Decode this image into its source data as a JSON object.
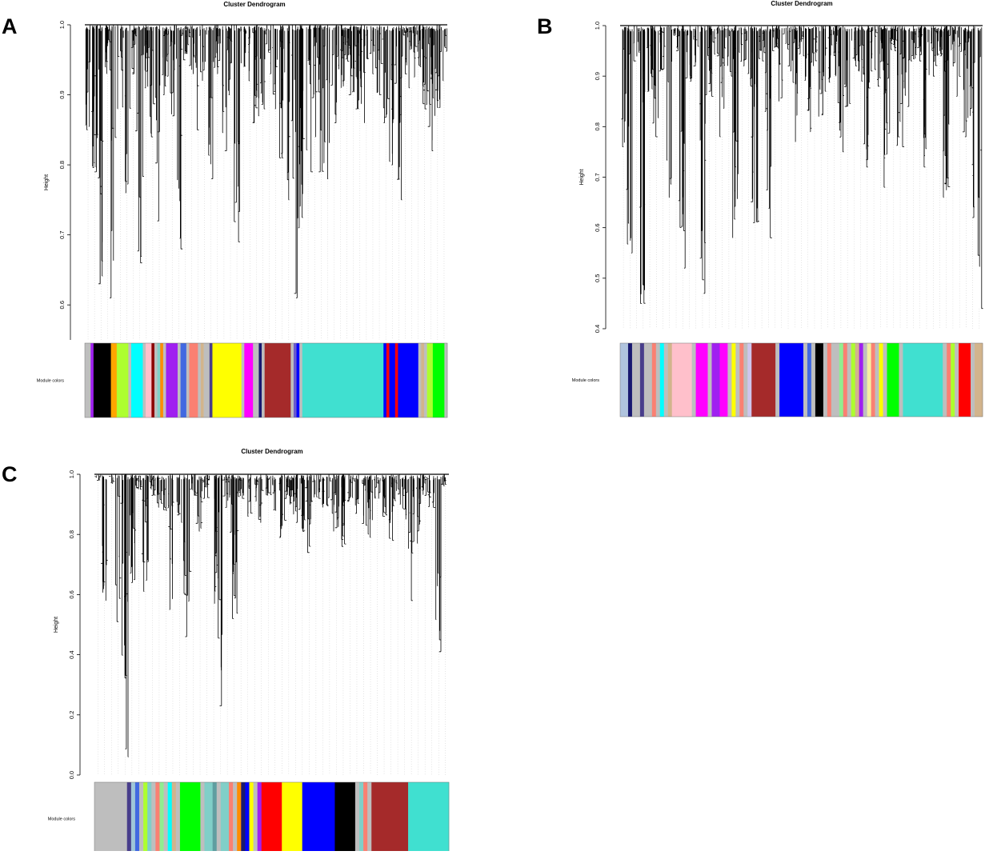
{
  "panel_labels": [
    "A",
    "B",
    "C"
  ],
  "chart_data": [
    {
      "panel": "A",
      "type": "dendrogram",
      "title": "Cluster Dendrogram",
      "ylabel": "Height",
      "band_label": "Module colors",
      "ylim": [
        0.55,
        1.0
      ],
      "yticks": [
        "0.6",
        "0.7",
        "0.8",
        "0.9",
        "1.0"
      ],
      "merge_heights": [
        0.85,
        0.79,
        0.63,
        0.93,
        0.61,
        0.88,
        0.76,
        0.93,
        0.66,
        0.91,
        0.84,
        0.72,
        0.9,
        0.87,
        0.68,
        0.95,
        0.93,
        0.85,
        0.92,
        0.78,
        0.93,
        0.82,
        0.9,
        0.69,
        0.94,
        0.92,
        0.86,
        0.88,
        0.93,
        0.88,
        0.81,
        0.75,
        0.61,
        0.71,
        0.79,
        0.84,
        0.79,
        0.78,
        0.86,
        0.91,
        0.92,
        0.9,
        0.88,
        0.86,
        0.93,
        0.9,
        0.86,
        0.8,
        0.75,
        0.93,
        0.91,
        0.94,
        0.88,
        0.82,
        0.87,
        0.92
      ],
      "module_colors": [
        {
          "color": "grey",
          "width": 2
        },
        {
          "color": "purple",
          "width": 1
        },
        {
          "color": "black",
          "width": 6
        },
        {
          "color": "orange",
          "width": 2
        },
        {
          "color": "greenyellow",
          "width": 4
        },
        {
          "color": "grey",
          "width": 1
        },
        {
          "color": "cyan",
          "width": 4
        },
        {
          "color": "grey",
          "width": 1
        },
        {
          "color": "pink",
          "width": 2
        },
        {
          "color": "darkred",
          "width": 1
        },
        {
          "color": "grey",
          "width": 1
        },
        {
          "color": "lightcyan",
          "width": 1
        },
        {
          "color": "darkorange",
          "width": 1
        },
        {
          "color": "grey",
          "width": 1
        },
        {
          "color": "purple",
          "width": 4
        },
        {
          "color": "grey",
          "width": 1
        },
        {
          "color": "royalblue",
          "width": 2
        },
        {
          "color": "grey",
          "width": 1
        },
        {
          "color": "salmon",
          "width": 3
        },
        {
          "color": "grey",
          "width": 1
        },
        {
          "color": "tan",
          "width": 1
        },
        {
          "color": "grey",
          "width": 2
        },
        {
          "color": "darkslateblue",
          "width": 1
        },
        {
          "color": "yellow",
          "width": 10
        },
        {
          "color": "grey",
          "width": 1
        },
        {
          "color": "magenta",
          "width": 3
        },
        {
          "color": "grey",
          "width": 2
        },
        {
          "color": "midnightblue",
          "width": 1
        },
        {
          "color": "grey",
          "width": 1
        },
        {
          "color": "brown",
          "width": 9
        },
        {
          "color": "grey",
          "width": 1
        },
        {
          "color": "slateblue",
          "width": 1
        },
        {
          "color": "blue",
          "width": 1
        },
        {
          "color": "grey",
          "width": 1
        },
        {
          "color": "turquoise",
          "width": 28
        },
        {
          "color": "blue",
          "width": 1
        },
        {
          "color": "red",
          "width": 1
        },
        {
          "color": "blue",
          "width": 2
        },
        {
          "color": "red",
          "width": 1
        },
        {
          "color": "blue",
          "width": 7
        },
        {
          "color": "grey",
          "width": 1
        },
        {
          "color": "tan",
          "width": 1
        },
        {
          "color": "grey",
          "width": 1
        },
        {
          "color": "greenyellow",
          "width": 2
        },
        {
          "color": "green",
          "width": 4
        },
        {
          "color": "grey",
          "width": 1
        }
      ]
    },
    {
      "panel": "B",
      "type": "dendrogram",
      "title": "Cluster Dendrogram",
      "ylabel": "Height",
      "band_label": "Module colors",
      "ylim": [
        0.4,
        1.0
      ],
      "yticks": [
        "0.4",
        "0.5",
        "0.6",
        "0.7",
        "0.8",
        "0.9",
        "1.0"
      ],
      "merge_heights": [
        0.76,
        0.55,
        0.93,
        0.45,
        0.87,
        0.78,
        0.91,
        0.66,
        0.95,
        0.52,
        0.89,
        0.92,
        0.47,
        0.86,
        0.94,
        0.78,
        0.9,
        0.58,
        0.92,
        0.88,
        0.61,
        0.93,
        0.58,
        0.95,
        0.85,
        0.91,
        0.77,
        0.94,
        0.79,
        0.92,
        0.82,
        0.87,
        0.9,
        0.75,
        0.84,
        0.92,
        0.89,
        0.72,
        0.91,
        0.88,
        0.68,
        0.95,
        0.76,
        0.84,
        0.93,
        0.93,
        0.72,
        0.9,
        0.94,
        0.66,
        0.92,
        0.86,
        0.78,
        0.62,
        0.44
      ],
      "module_colors": [
        {
          "color": "lightsteelblue",
          "width": 2
        },
        {
          "color": "midnightblue",
          "width": 1
        },
        {
          "color": "grey",
          "width": 2
        },
        {
          "color": "darkslateblue",
          "width": 1
        },
        {
          "color": "grey",
          "width": 2
        },
        {
          "color": "salmon",
          "width": 1
        },
        {
          "color": "grey",
          "width": 1
        },
        {
          "color": "cyan",
          "width": 1
        },
        {
          "color": "grey",
          "width": 1
        },
        {
          "color": "tan",
          "width": 1
        },
        {
          "color": "pink",
          "width": 5
        },
        {
          "color": "grey",
          "width": 1
        },
        {
          "color": "magenta",
          "width": 3
        },
        {
          "color": "grey",
          "width": 1
        },
        {
          "color": "purple",
          "width": 2
        },
        {
          "color": "magenta",
          "width": 2
        },
        {
          "color": "grey",
          "width": 1
        },
        {
          "color": "yellow",
          "width": 1
        },
        {
          "color": "grey",
          "width": 1
        },
        {
          "color": "salmon",
          "width": 1
        },
        {
          "color": "grey",
          "width": 1
        },
        {
          "color": "lavender",
          "width": 1
        },
        {
          "color": "brown",
          "width": 6
        },
        {
          "color": "grey",
          "width": 1
        },
        {
          "color": "blue",
          "width": 6
        },
        {
          "color": "grey",
          "width": 1
        },
        {
          "color": "royalblue",
          "width": 1
        },
        {
          "color": "grey",
          "width": 1
        },
        {
          "color": "black",
          "width": 2
        },
        {
          "color": "grey",
          "width": 1
        },
        {
          "color": "salmon",
          "width": 1
        },
        {
          "color": "grey",
          "width": 2
        },
        {
          "color": "lightgreen",
          "width": 1
        },
        {
          "color": "salmon",
          "width": 1
        },
        {
          "color": "grey",
          "width": 1
        },
        {
          "color": "greenyellow",
          "width": 1
        },
        {
          "color": "tan",
          "width": 1
        },
        {
          "color": "purple",
          "width": 1
        },
        {
          "color": "grey",
          "width": 1
        },
        {
          "color": "lightyellow",
          "width": 1
        },
        {
          "color": "salmon",
          "width": 1
        },
        {
          "color": "grey",
          "width": 1
        },
        {
          "color": "yellow",
          "width": 1
        },
        {
          "color": "grey",
          "width": 1
        },
        {
          "color": "green",
          "width": 3
        },
        {
          "color": "grey",
          "width": 1
        },
        {
          "color": "turquoise",
          "width": 10
        },
        {
          "color": "grey",
          "width": 1
        },
        {
          "color": "salmon",
          "width": 1
        },
        {
          "color": "greenyellow",
          "width": 1
        },
        {
          "color": "grey",
          "width": 1
        },
        {
          "color": "red",
          "width": 3
        },
        {
          "color": "grey",
          "width": 1
        },
        {
          "color": "tan",
          "width": 2
        }
      ]
    },
    {
      "panel": "C",
      "type": "dendrogram",
      "title": "Cluster Dendrogram",
      "ylabel": "Height",
      "band_label": "Module colors",
      "ylim": [
        0.0,
        1.0
      ],
      "yticks": [
        "0.0",
        "0.2",
        "0.4",
        "0.6",
        "0.8",
        "1.0"
      ],
      "merge_heights": [
        0.98,
        0.58,
        0.97,
        0.51,
        0.06,
        0.64,
        0.95,
        0.61,
        0.93,
        0.89,
        0.88,
        0.55,
        0.84,
        0.46,
        0.93,
        0.81,
        0.92,
        0.57,
        0.23,
        0.89,
        0.52,
        0.92,
        0.86,
        0.91,
        0.84,
        0.93,
        0.88,
        0.79,
        0.9,
        0.84,
        0.81,
        0.74,
        0.92,
        0.89,
        0.87,
        0.81,
        0.76,
        0.91,
        0.87,
        0.83,
        0.79,
        0.92,
        0.86,
        0.78,
        0.9,
        0.85,
        0.58,
        0.77,
        0.93,
        0.89,
        0.41,
        0.96
      ],
      "module_colors": [
        {
          "color": "grey",
          "width": 8
        },
        {
          "color": "darkslateblue",
          "width": 1
        },
        {
          "color": "lightblue",
          "width": 1
        },
        {
          "color": "royalblue",
          "width": 1
        },
        {
          "color": "grey",
          "width": 1
        },
        {
          "color": "greenyellow",
          "width": 1
        },
        {
          "color": "lightcyan",
          "width": 1
        },
        {
          "color": "grey",
          "width": 1
        },
        {
          "color": "salmon",
          "width": 1
        },
        {
          "color": "lightgreen",
          "width": 1
        },
        {
          "color": "grey",
          "width": 1
        },
        {
          "color": "cyan",
          "width": 1
        },
        {
          "color": "tan",
          "width": 1
        },
        {
          "color": "grey",
          "width": 1
        },
        {
          "color": "green",
          "width": 5
        },
        {
          "color": "grey",
          "width": 1
        },
        {
          "color": "lightcyan",
          "width": 2
        },
        {
          "color": "cadetblue",
          "width": 1
        },
        {
          "color": "grey",
          "width": 1
        },
        {
          "color": "lightcyan",
          "width": 2
        },
        {
          "color": "salmon",
          "width": 1
        },
        {
          "color": "grey",
          "width": 1
        },
        {
          "color": "darkorange",
          "width": 1
        },
        {
          "color": "midnightblue",
          "width": 1
        },
        {
          "color": "blue",
          "width": 1
        },
        {
          "color": "yellow",
          "width": 1
        },
        {
          "color": "grey",
          "width": 1
        },
        {
          "color": "purple",
          "width": 1
        },
        {
          "color": "red",
          "width": 5
        },
        {
          "color": "yellow",
          "width": 5
        },
        {
          "color": "blue",
          "width": 8
        },
        {
          "color": "black",
          "width": 5
        },
        {
          "color": "grey",
          "width": 1
        },
        {
          "color": "lightcyan",
          "width": 1
        },
        {
          "color": "salmon",
          "width": 1
        },
        {
          "color": "grey",
          "width": 1
        },
        {
          "color": "brown",
          "width": 9
        },
        {
          "color": "turquoise",
          "width": 10
        }
      ]
    }
  ],
  "colors": {
    "black": "#000000",
    "grey": "#bebebe",
    "purple": "#a020f0",
    "orange": "#ffa500",
    "greenyellow": "#adff2f",
    "cyan": "#00ffff",
    "pink": "#ffc0cb",
    "darkred": "#8b0000",
    "lightcyan": "#80cfc8",
    "darkorange": "#ff8c00",
    "royalblue": "#4169e1",
    "salmon": "#fa8072",
    "tan": "#d2b48c",
    "darkslateblue": "#483d8b",
    "yellow": "#ffff00",
    "magenta": "#ff00ff",
    "midnightblue": "#191970",
    "brown": "#a52a2a",
    "slateblue": "#6a5acd",
    "blue": "#0000ff",
    "turquoise": "#40e0d0",
    "red": "#ff0000",
    "green": "#00ff00",
    "lightsteelblue": "#b0c4de",
    "lavender": "#cfc6ee",
    "lightgreen": "#90ee90",
    "lightyellow": "#f5f0a0",
    "lightblue": "#9fc7d8",
    "cadetblue": "#5f9ea0"
  }
}
